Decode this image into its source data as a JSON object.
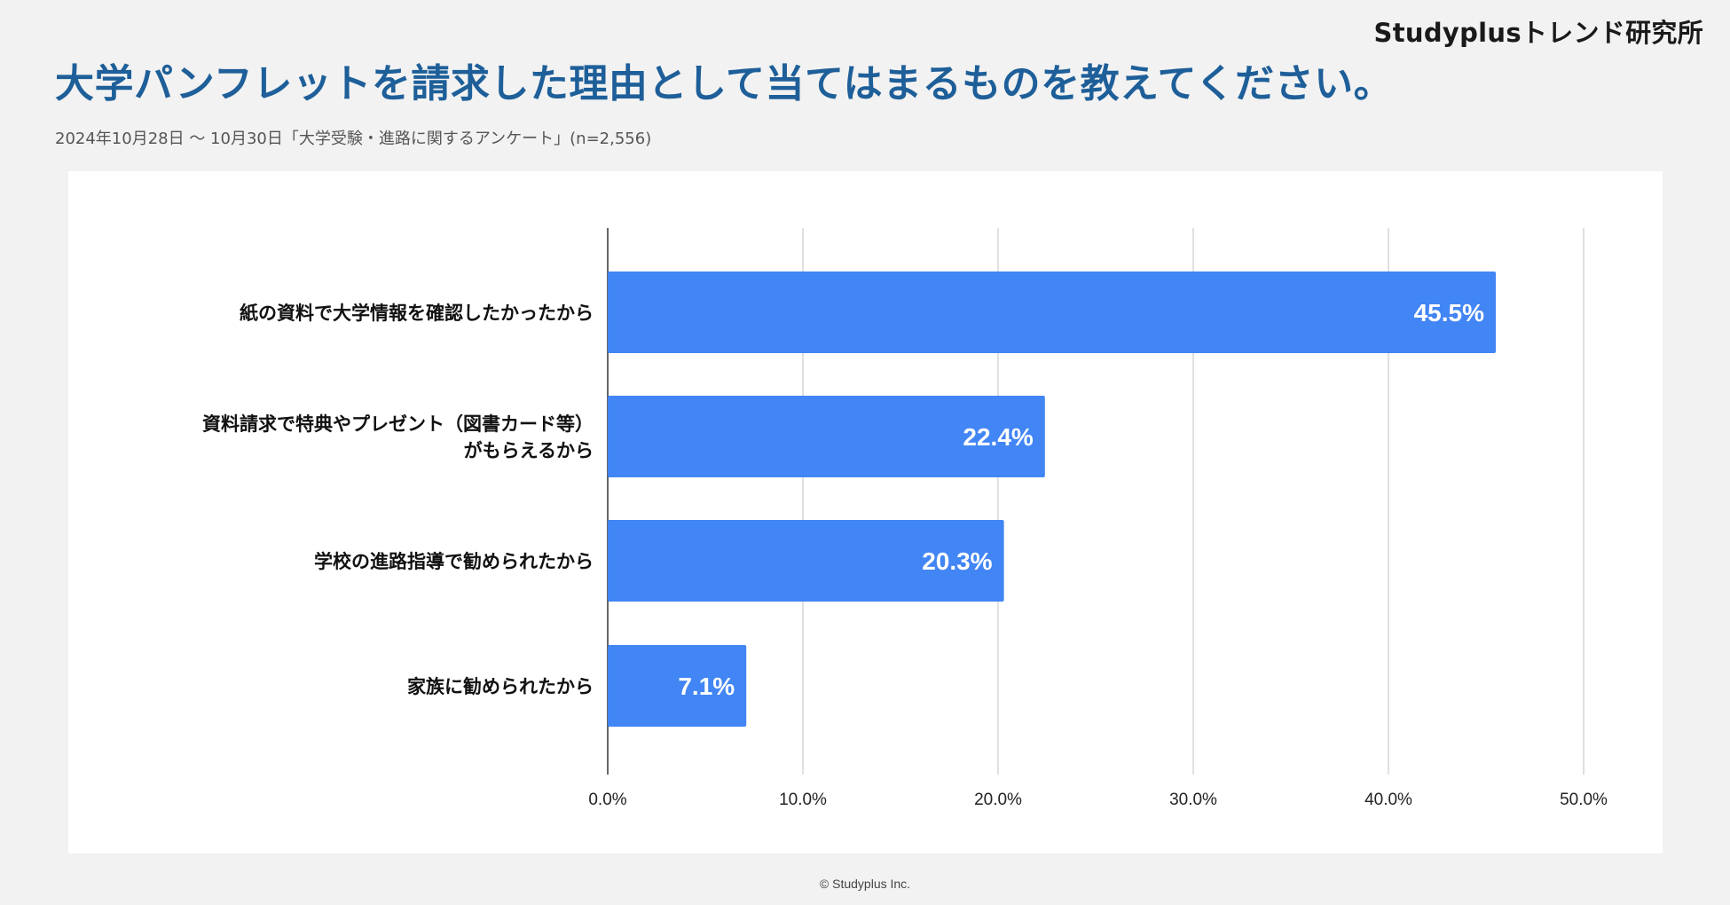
{
  "brand": "Studyplusトレンド研究所",
  "title": "大学パンフレットを請求した理由として当てはまるものを教えてください。",
  "subtitle": "2024年10月28日 〜 10月30日「大学受験・進路に関するアンケート」(n=2,556)",
  "copyright": "© Studyplus Inc.",
  "colors": {
    "bar": "#4285f4",
    "title": "#1e5f99",
    "grid": "#cccccc",
    "axis": "#333333",
    "background": "#f2f2f2",
    "panel": "#ffffff"
  },
  "chart_data": {
    "type": "bar",
    "orientation": "horizontal",
    "categories": [
      [
        "紙の資料で大学情報を確認したかったから"
      ],
      [
        "資料請求で特典やプレゼント（図書カード等）",
        "がもらえるから"
      ],
      [
        "学校の進路指導で勧められたから"
      ],
      [
        "家族に勧められたから"
      ]
    ],
    "values": [
      45.5,
      22.4,
      20.3,
      7.1
    ],
    "value_labels": [
      "45.5%",
      "22.4%",
      "20.3%",
      "7.1%"
    ],
    "xlim": [
      0,
      50
    ],
    "xticks": [
      0,
      10,
      20,
      30,
      40,
      50
    ],
    "xtick_labels": [
      "0.0%",
      "10.0%",
      "20.0%",
      "30.0%",
      "40.0%",
      "50.0%"
    ],
    "xlabel": "",
    "ylabel": "",
    "grid": true,
    "legend": "none"
  }
}
